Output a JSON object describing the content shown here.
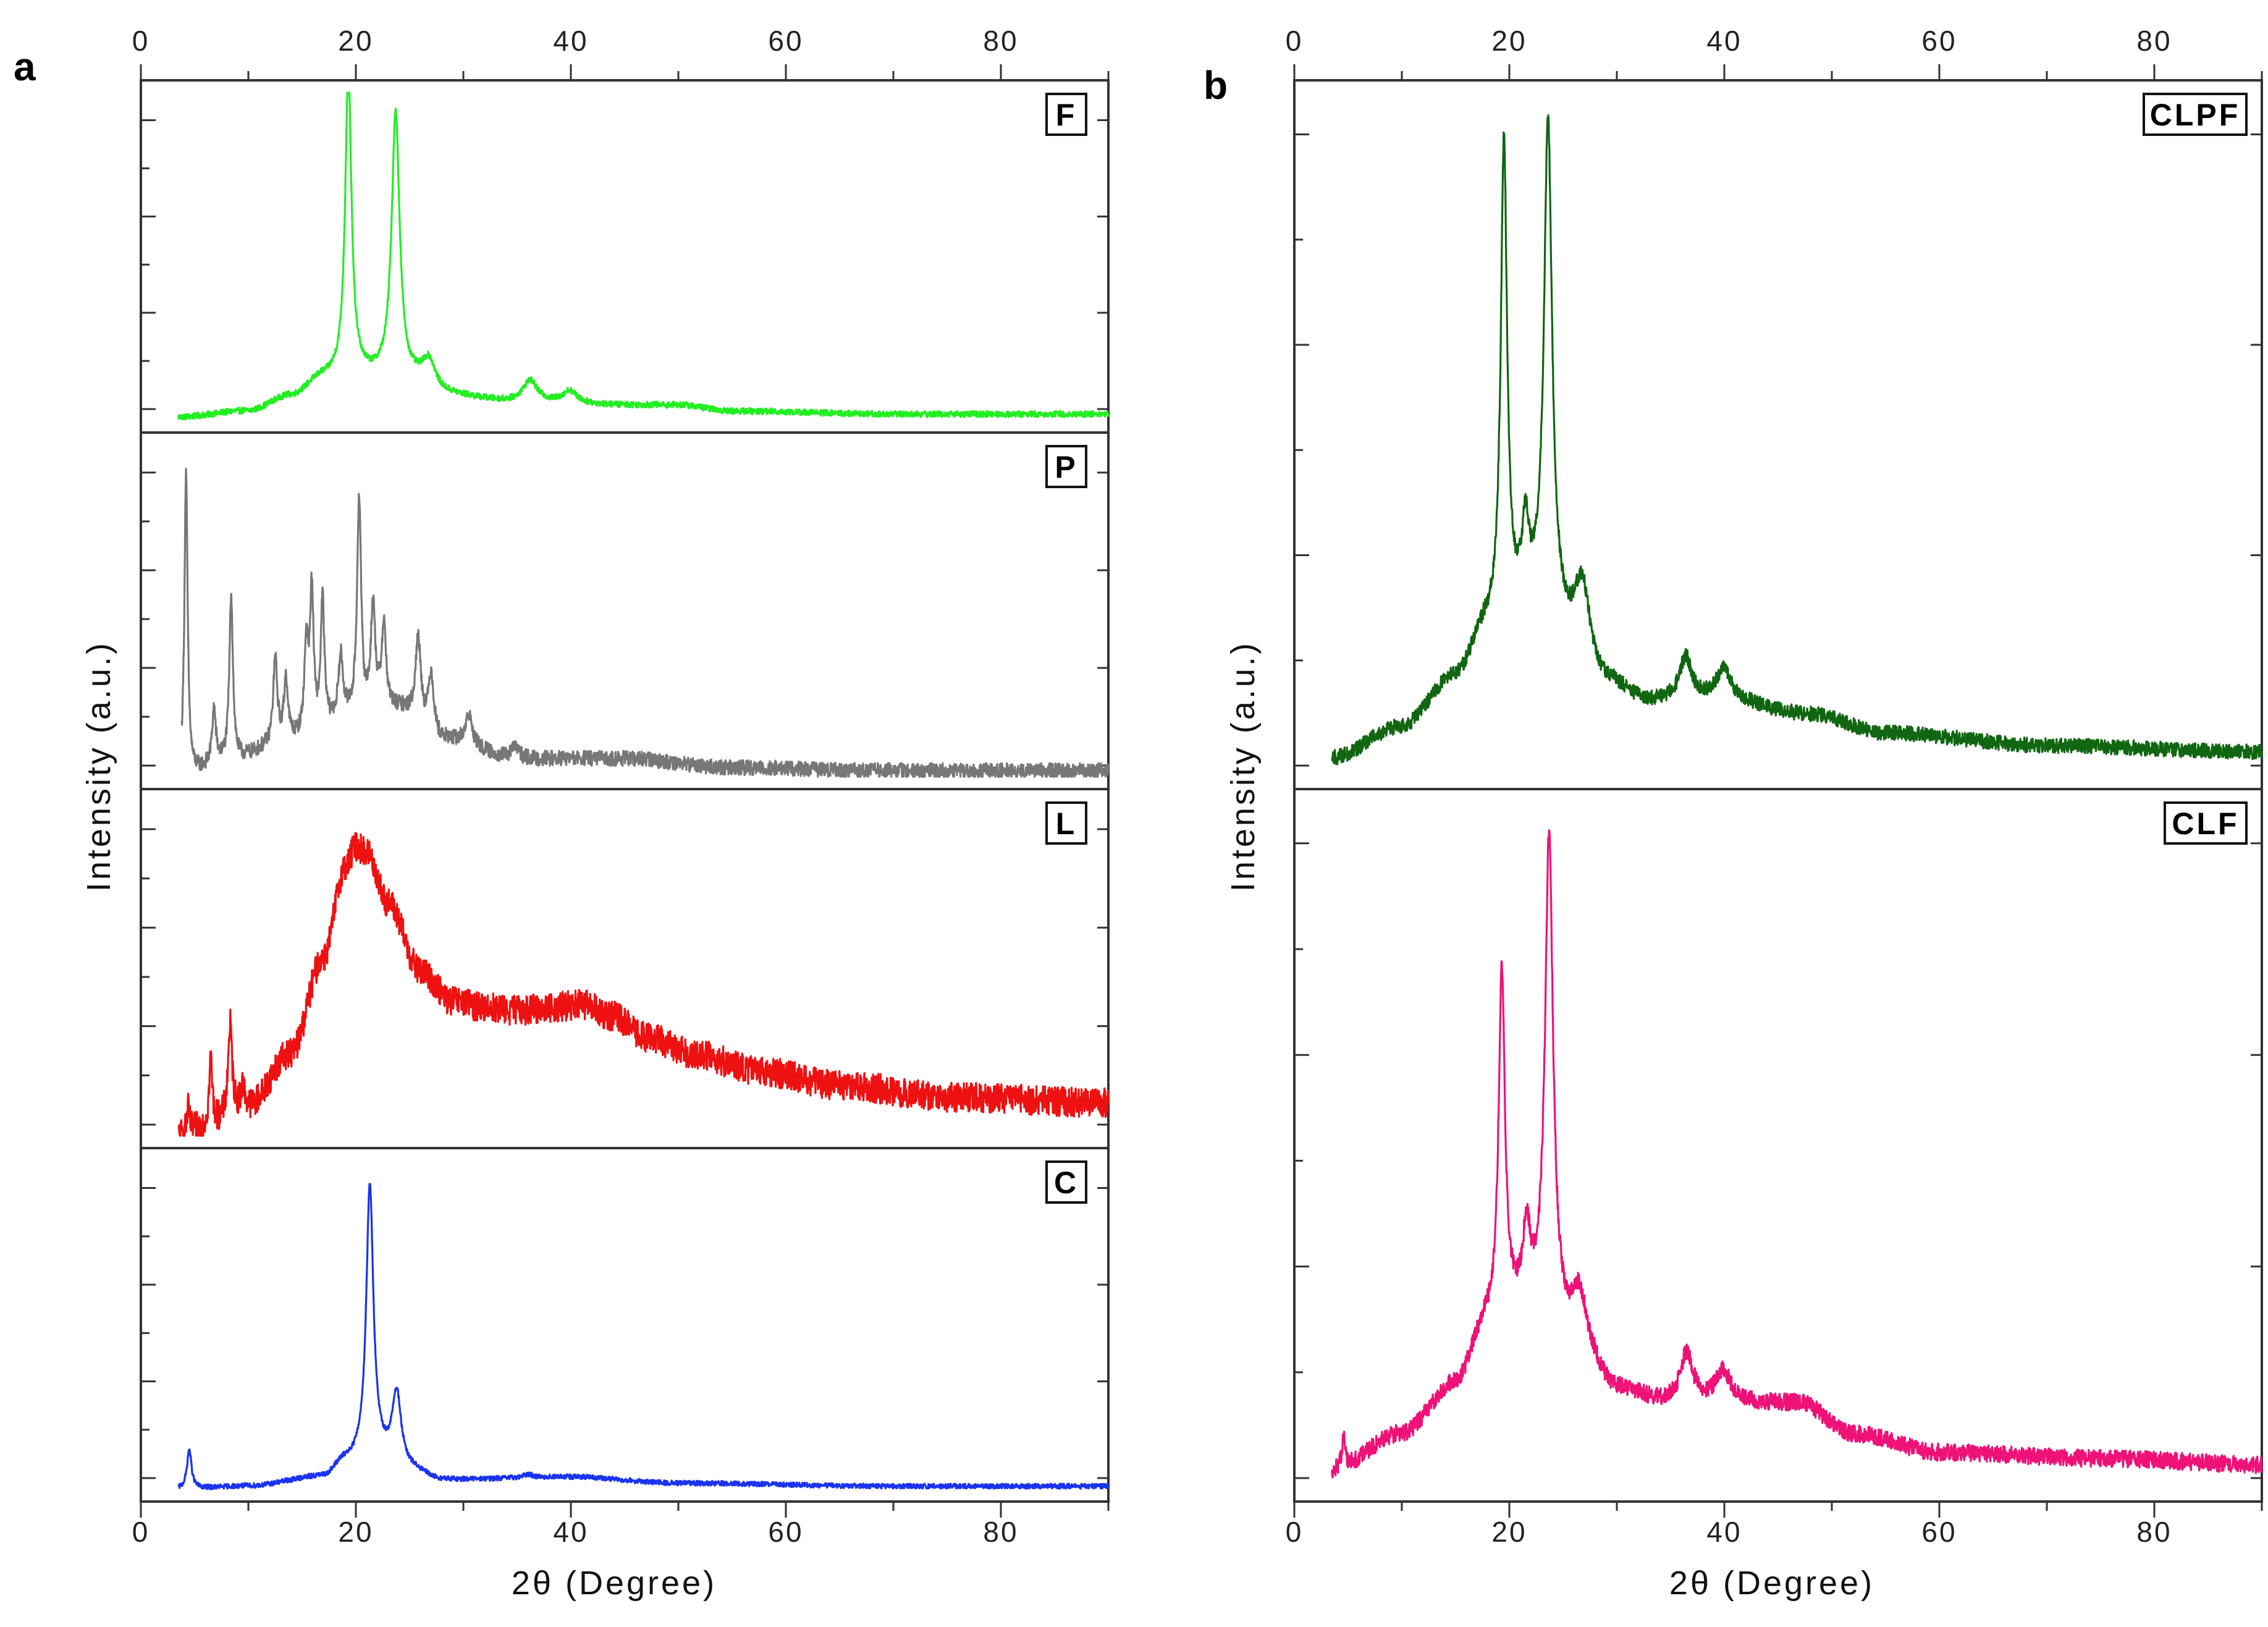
{
  "chart_data": [
    {
      "panel": "a",
      "type": "line",
      "xlabel": "2θ (Degree)",
      "ylabel": "Intensity (a.u.)",
      "xlim": [
        0,
        90
      ],
      "x_ticks": [
        0,
        20,
        40,
        60,
        80
      ],
      "series": [
        {
          "name": "F",
          "color": "#22ee22",
          "ylim": [
            0,
            1.08
          ],
          "baseline": [
            [
              3.5,
              0.01
            ],
            [
              10,
              0.03
            ],
            [
              14,
              0.08
            ],
            [
              17,
              0.14
            ],
            [
              20,
              0.15
            ],
            [
              22,
              0.14
            ],
            [
              25,
              0.12
            ],
            [
              28,
              0.08
            ],
            [
              35,
              0.06
            ],
            [
              45,
              0.05
            ],
            [
              50,
              0.05
            ],
            [
              55,
              0.03
            ],
            [
              70,
              0.02
            ],
            [
              90,
              0.02
            ]
          ],
          "peaks": [
            {
              "x": 19.3,
              "h": 1.0,
              "w": 0.35
            },
            {
              "x": 23.7,
              "h": 0.88,
              "w": 0.45
            },
            {
              "x": 26.8,
              "h": 0.1,
              "w": 0.8
            },
            {
              "x": 36.2,
              "h": 0.07,
              "w": 0.8
            },
            {
              "x": 39.9,
              "h": 0.04,
              "w": 0.8
            }
          ],
          "noise": 0.01
        },
        {
          "name": "P",
          "color": "#777777",
          "ylim": [
            0,
            1.1
          ],
          "baseline": [
            [
              3.8,
              0.0
            ],
            [
              8,
              0.05
            ],
            [
              14,
              0.12
            ],
            [
              20,
              0.2
            ],
            [
              24,
              0.22
            ],
            [
              28,
              0.12
            ],
            [
              35,
              0.06
            ],
            [
              45,
              0.06
            ],
            [
              55,
              0.03
            ],
            [
              70,
              0.02
            ],
            [
              90,
              0.02
            ]
          ],
          "peaks": [
            {
              "x": 4.2,
              "h": 1.0,
              "w": 0.18
            },
            {
              "x": 6.8,
              "h": 0.18,
              "w": 0.2
            },
            {
              "x": 8.4,
              "h": 0.55,
              "w": 0.2
            },
            {
              "x": 12.5,
              "h": 0.28,
              "w": 0.22
            },
            {
              "x": 13.5,
              "h": 0.2,
              "w": 0.22
            },
            {
              "x": 15.4,
              "h": 0.3,
              "w": 0.22
            },
            {
              "x": 15.9,
              "h": 0.45,
              "w": 0.2
            },
            {
              "x": 16.9,
              "h": 0.42,
              "w": 0.2
            },
            {
              "x": 18.6,
              "h": 0.2,
              "w": 0.25
            },
            {
              "x": 20.3,
              "h": 0.72,
              "w": 0.22
            },
            {
              "x": 21.6,
              "h": 0.35,
              "w": 0.25
            },
            {
              "x": 22.6,
              "h": 0.28,
              "w": 0.25
            },
            {
              "x": 25.8,
              "h": 0.28,
              "w": 0.3
            },
            {
              "x": 27.0,
              "h": 0.2,
              "w": 0.3
            },
            {
              "x": 30.5,
              "h": 0.1,
              "w": 0.4
            },
            {
              "x": 34.8,
              "h": 0.04,
              "w": 0.4
            }
          ],
          "noise": 0.025
        },
        {
          "name": "L",
          "color": "#ee1111",
          "ylim": [
            0,
            1.12
          ],
          "baseline": [
            [
              3.5,
              0.0
            ],
            [
              6,
              0.03
            ],
            [
              10,
              0.1
            ],
            [
              14,
              0.28
            ],
            [
              17,
              0.6
            ],
            [
              19,
              0.9
            ],
            [
              20,
              0.97
            ],
            [
              21,
              0.95
            ],
            [
              23,
              0.78
            ],
            [
              26,
              0.55
            ],
            [
              29,
              0.45
            ],
            [
              32,
              0.43
            ],
            [
              35,
              0.42
            ],
            [
              38,
              0.43
            ],
            [
              41,
              0.44
            ],
            [
              44,
              0.4
            ],
            [
              47,
              0.33
            ],
            [
              52,
              0.27
            ],
            [
              57,
              0.22
            ],
            [
              65,
              0.17
            ],
            [
              75,
              0.13
            ],
            [
              90,
              0.11
            ]
          ],
          "peaks": [
            {
              "x": 4.4,
              "h": 0.08,
              "w": 0.15
            },
            {
              "x": 6.5,
              "h": 0.22,
              "w": 0.18
            },
            {
              "x": 8.3,
              "h": 0.3,
              "w": 0.22
            },
            {
              "x": 9.5,
              "h": 0.07,
              "w": 0.2
            }
          ],
          "noise": 0.05
        },
        {
          "name": "C",
          "color": "#1a33ee",
          "ylim": [
            0,
            1.08
          ],
          "baseline": [
            [
              3.5,
              0.0
            ],
            [
              10,
              0.01
            ],
            [
              17,
              0.04
            ],
            [
              19,
              0.09
            ],
            [
              22,
              0.1
            ],
            [
              25,
              0.06
            ],
            [
              28,
              0.03
            ],
            [
              40,
              0.04
            ],
            [
              50,
              0.02
            ],
            [
              70,
              0.01
            ],
            [
              90,
              0.01
            ]
          ],
          "peaks": [
            {
              "x": 4.5,
              "h": 0.13,
              "w": 0.25
            },
            {
              "x": 21.3,
              "h": 0.9,
              "w": 0.4
            },
            {
              "x": 23.8,
              "h": 0.24,
              "w": 0.5
            },
            {
              "x": 36.0,
              "h": 0.01,
              "w": 0.6
            }
          ],
          "noise": 0.008
        }
      ]
    },
    {
      "panel": "b",
      "type": "line",
      "xlabel": "2θ (Degree)",
      "ylabel": "Intensity (a.u.)",
      "xlim": [
        0,
        90
      ],
      "x_ticks": [
        0,
        20,
        40,
        60,
        80
      ],
      "series": [
        {
          "name": "CLPF",
          "color": "#116611",
          "ylim": [
            -0.02,
            1.08
          ],
          "baseline": [
            [
              3.5,
              0.01
            ],
            [
              10,
              0.06
            ],
            [
              15,
              0.14
            ],
            [
              18,
              0.22
            ],
            [
              20,
              0.24
            ],
            [
              23,
              0.25
            ],
            [
              26,
              0.2
            ],
            [
              29,
              0.13
            ],
            [
              33,
              0.1
            ],
            [
              40,
              0.1
            ],
            [
              48,
              0.08
            ],
            [
              55,
              0.05
            ],
            [
              70,
              0.03
            ],
            [
              90,
              0.02
            ]
          ],
          "peaks": [
            {
              "x": 19.5,
              "h": 0.76,
              "w": 0.35
            },
            {
              "x": 21.5,
              "h": 0.12,
              "w": 0.4
            },
            {
              "x": 23.6,
              "h": 0.78,
              "w": 0.45
            },
            {
              "x": 26.8,
              "h": 0.1,
              "w": 0.8
            },
            {
              "x": 36.4,
              "h": 0.07,
              "w": 0.7
            },
            {
              "x": 39.9,
              "h": 0.05,
              "w": 0.9
            }
          ],
          "noise": 0.012
        },
        {
          "name": "CLF",
          "color": "#ee1177",
          "ylim": [
            -0.02,
            1.1
          ],
          "baseline": [
            [
              3.5,
              0.01
            ],
            [
              10,
              0.07
            ],
            [
              15,
              0.15
            ],
            [
              18,
              0.25
            ],
            [
              20,
              0.27
            ],
            [
              23,
              0.27
            ],
            [
              26,
              0.22
            ],
            [
              30,
              0.14
            ],
            [
              35,
              0.12
            ],
            [
              40,
              0.12
            ],
            [
              47,
              0.12
            ],
            [
              52,
              0.07
            ],
            [
              60,
              0.04
            ],
            [
              75,
              0.03
            ],
            [
              90,
              0.02
            ]
          ],
          "peaks": [
            {
              "x": 4.6,
              "h": 0.05,
              "w": 0.2
            },
            {
              "x": 19.3,
              "h": 0.56,
              "w": 0.35
            },
            {
              "x": 21.6,
              "h": 0.12,
              "w": 0.4
            },
            {
              "x": 23.7,
              "h": 0.77,
              "w": 0.45
            },
            {
              "x": 26.5,
              "h": 0.08,
              "w": 0.8
            },
            {
              "x": 36.5,
              "h": 0.08,
              "w": 0.7
            },
            {
              "x": 39.9,
              "h": 0.05,
              "w": 0.9
            }
          ],
          "noise": 0.014
        }
      ]
    }
  ]
}
